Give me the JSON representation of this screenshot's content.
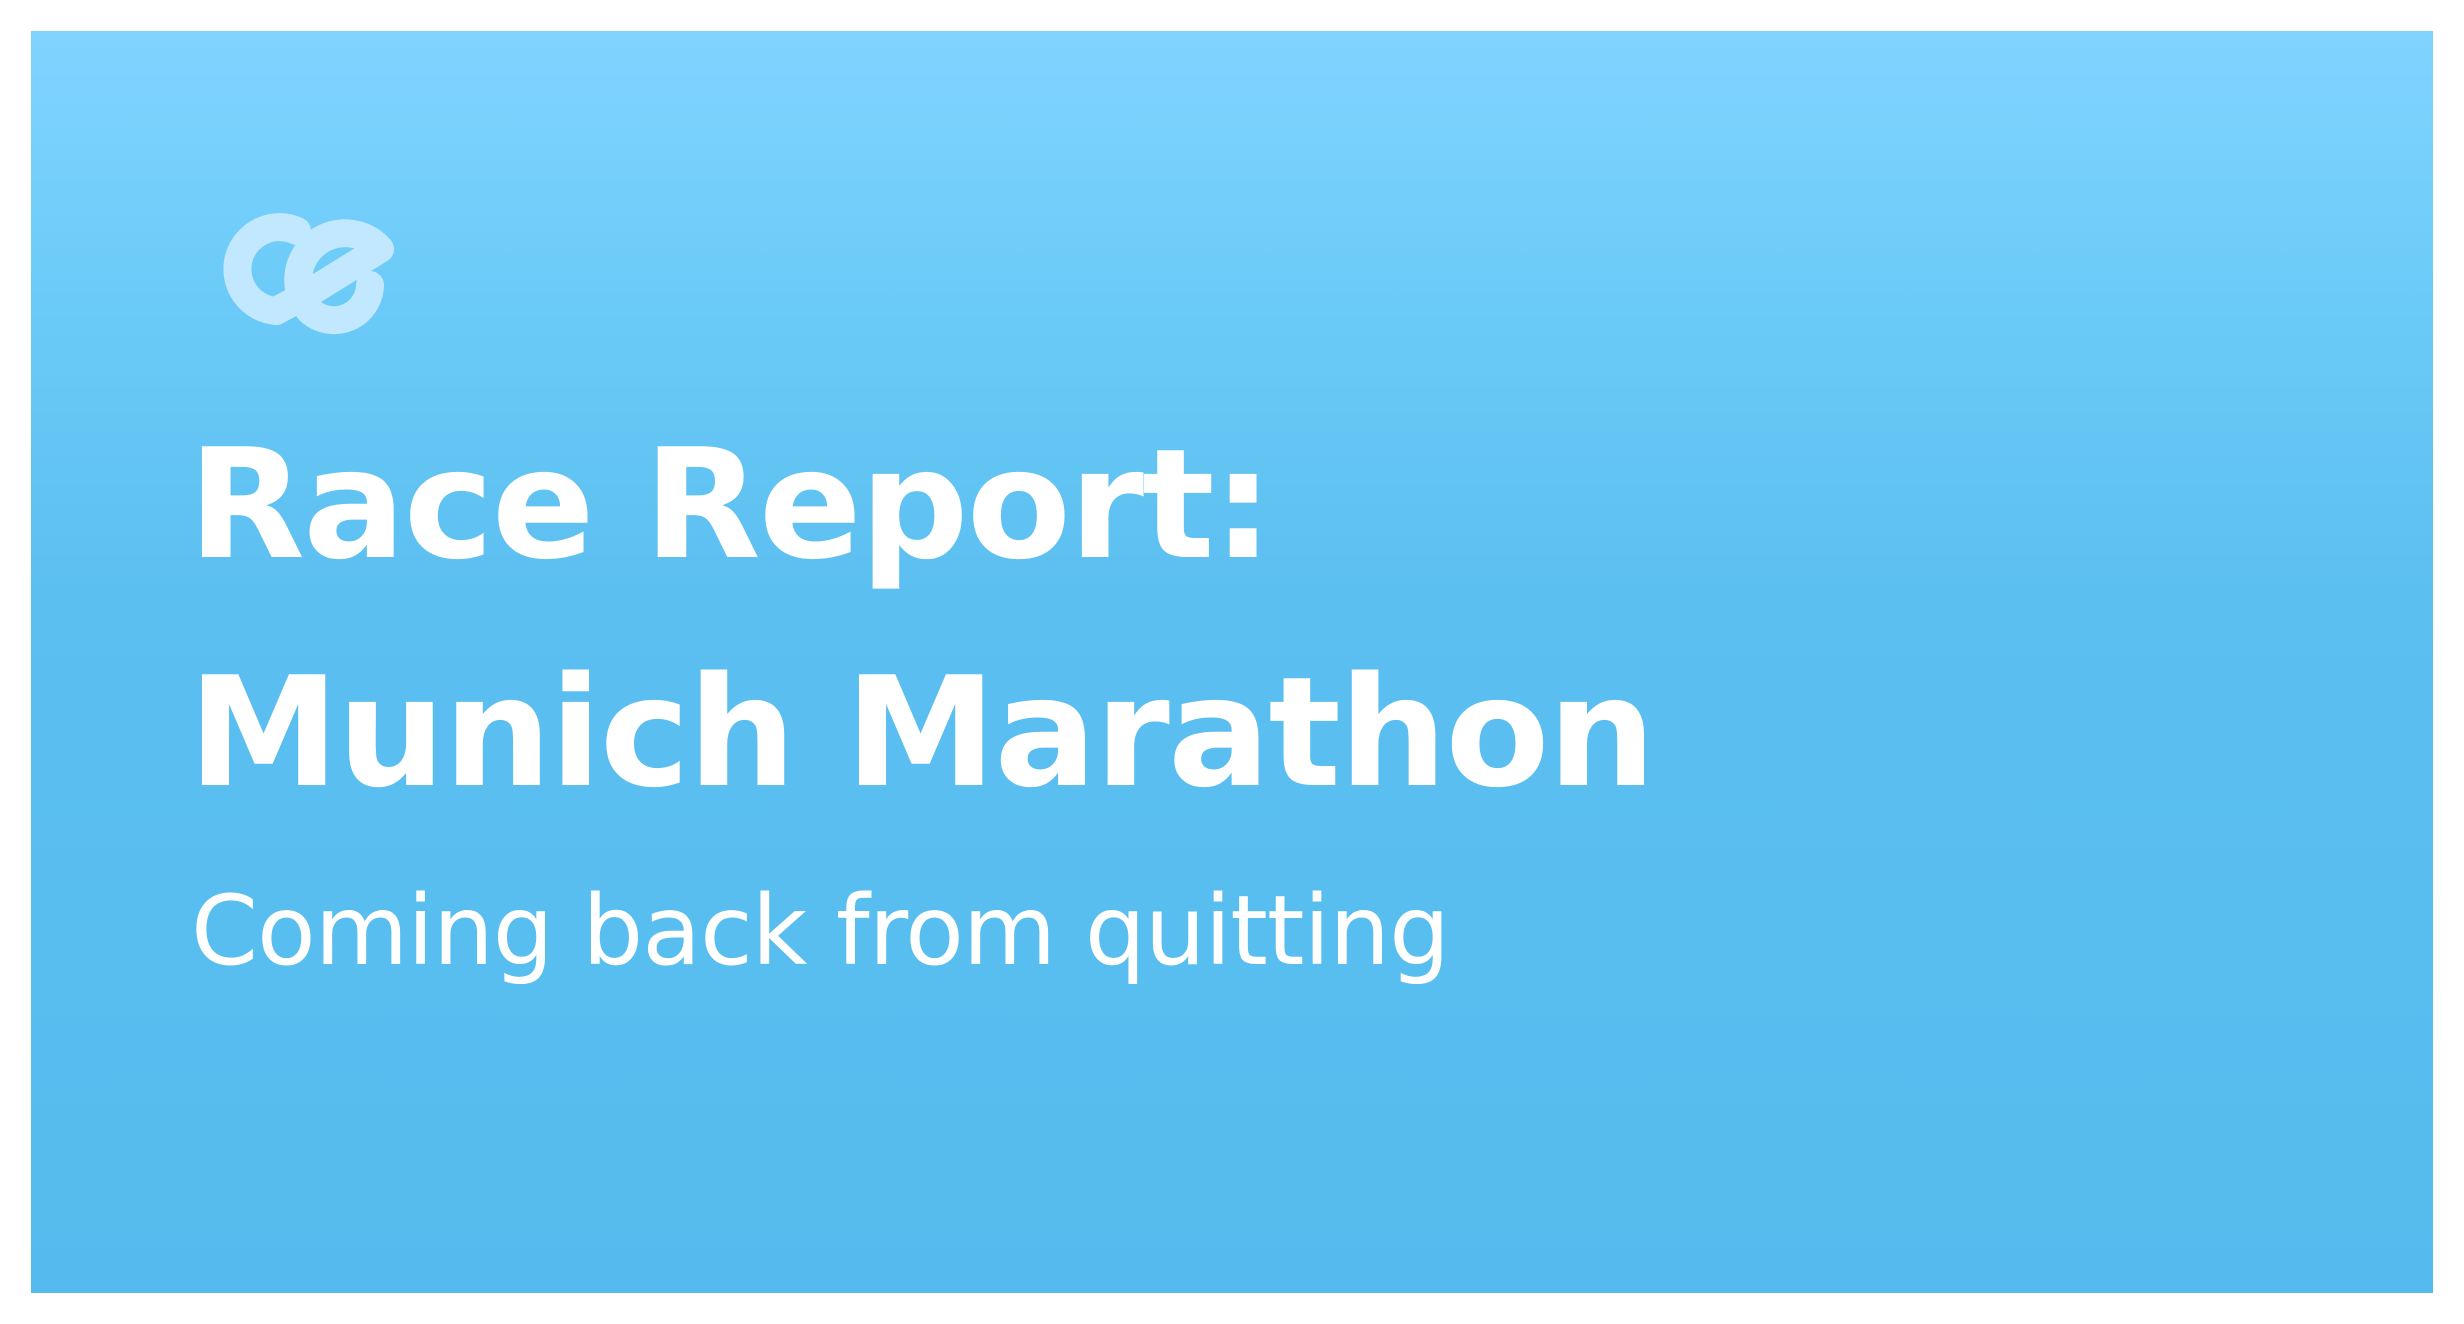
{
  "brand": {
    "logo_icon": "ce-monogram-icon",
    "logo_color": "#c2e8ff"
  },
  "card": {
    "background_top": "#80d4ff",
    "background_bottom": "#55bbee"
  },
  "title": {
    "line1": "Race Report:",
    "line2": "Munich Marathon"
  },
  "subtitle": "Coming back from quitting"
}
